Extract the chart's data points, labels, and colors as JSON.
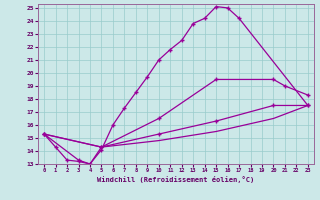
{
  "xlabel": "Windchill (Refroidissement éolien,°C)",
  "background_color": "#cce8e8",
  "line_color": "#990099",
  "xlim": [
    -0.5,
    23.5
  ],
  "ylim": [
    13,
    25.3
  ],
  "xticks": [
    0,
    1,
    2,
    3,
    4,
    5,
    6,
    7,
    8,
    9,
    10,
    11,
    12,
    13,
    14,
    15,
    16,
    17,
    18,
    19,
    20,
    21,
    22,
    23
  ],
  "yticks": [
    13,
    14,
    15,
    16,
    17,
    18,
    19,
    20,
    21,
    22,
    23,
    24,
    25
  ],
  "line1_x": [
    0,
    1,
    2,
    3,
    4,
    5,
    6,
    7,
    8,
    9,
    10,
    11,
    12,
    13,
    14,
    15,
    16,
    17,
    23
  ],
  "line1_y": [
    15.3,
    14.3,
    13.3,
    13.2,
    13.0,
    14.1,
    16.0,
    17.3,
    18.5,
    19.7,
    21.0,
    21.8,
    22.5,
    23.8,
    24.2,
    25.1,
    25.0,
    24.2,
    17.5
  ],
  "line2_x": [
    0,
    3,
    4,
    5,
    10,
    15,
    20,
    21,
    23
  ],
  "line2_y": [
    15.3,
    13.3,
    13.0,
    14.3,
    16.5,
    19.5,
    19.5,
    19.0,
    18.3
  ],
  "line3_x": [
    0,
    5,
    10,
    15,
    20,
    23
  ],
  "line3_y": [
    15.3,
    14.3,
    15.3,
    16.3,
    17.5,
    17.5
  ],
  "line4_x": [
    0,
    5,
    10,
    15,
    20,
    23
  ],
  "line4_y": [
    15.3,
    14.3,
    14.8,
    15.5,
    16.5,
    17.5
  ],
  "marker": "+"
}
